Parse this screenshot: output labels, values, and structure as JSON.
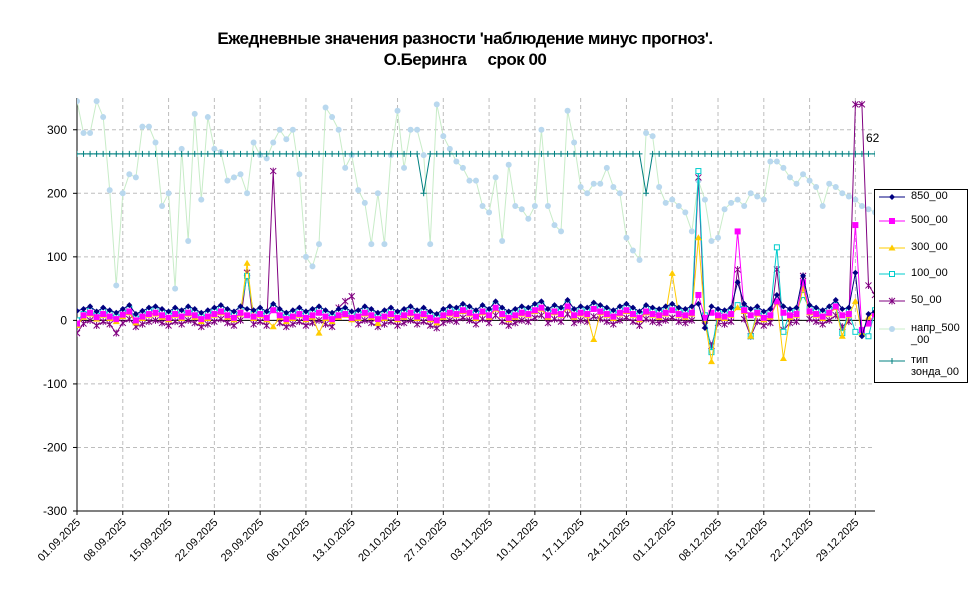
{
  "title_line1": "Ежедневные значения разности 'наблюдение минус прогноз'.",
  "title_line2": "О.Беринга     срок 00",
  "annotation": "62",
  "chart_data": {
    "type": "line",
    "title": "Ежедневные значения разности 'наблюдение минус прогноз'. О.Беринга срок 00",
    "ylim": [
      -300,
      350
    ],
    "yticks": [
      -300,
      -200,
      -100,
      0,
      100,
      200,
      300
    ],
    "grid": true,
    "legend_position": "right",
    "x_tick_labels": [
      "01.09.2025",
      "08.09.2025",
      "15.09.2025",
      "22.09.2025",
      "29.09.2025",
      "06.10.2025",
      "13.10.2025",
      "20.10.2025",
      "27.10.2025",
      "03.11.2025",
      "10.11.2025",
      "17.11.2025",
      "24.11.2025",
      "01.12.2025",
      "08.12.2025",
      "15.12.2025",
      "22.12.2025",
      "29.12.2025"
    ],
    "series": [
      {
        "name": "850_00",
        "color": "#000080",
        "marker": "diamond",
        "values": [
          15,
          18,
          22,
          14,
          20,
          16,
          12,
          18,
          24,
          10,
          15,
          20,
          22,
          18,
          14,
          20,
          16,
          22,
          18,
          12,
          16,
          20,
          24,
          18,
          14,
          22,
          18,
          16,
          20,
          14,
          26,
          18,
          12,
          16,
          20,
          14,
          18,
          22,
          16,
          12,
          18,
          20,
          14,
          16,
          22,
          18,
          12,
          16,
          20,
          14,
          18,
          22,
          16,
          20,
          14,
          10,
          18,
          22,
          20,
          26,
          22,
          16,
          24,
          18,
          30,
          20,
          14,
          18,
          22,
          20,
          26,
          30,
          18,
          24,
          20,
          32,
          18,
          22,
          20,
          28,
          24,
          20,
          16,
          22,
          26,
          20,
          14,
          24,
          20,
          18,
          22,
          26,
          20,
          18,
          22,
          26,
          -12,
          22,
          18,
          16,
          20,
          60,
          26,
          18,
          22,
          14,
          18,
          40,
          22,
          18,
          20,
          70,
          24,
          20,
          16,
          22,
          32,
          18,
          20,
          75,
          -25,
          10,
          14
        ]
      },
      {
        "name": "500_00",
        "color": "#FF00FF",
        "marker": "square",
        "values": [
          -5,
          8,
          12,
          5,
          10,
          6,
          2,
          9,
          14,
          0,
          6,
          10,
          12,
          8,
          4,
          10,
          6,
          12,
          8,
          2,
          6,
          10,
          14,
          8,
          4,
          12,
          8,
          6,
          10,
          4,
          16,
          8,
          2,
          6,
          10,
          4,
          8,
          12,
          6,
          2,
          8,
          10,
          4,
          6,
          12,
          8,
          2,
          6,
          10,
          4,
          8,
          12,
          6,
          10,
          4,
          0,
          8,
          12,
          10,
          16,
          12,
          6,
          14,
          8,
          20,
          10,
          4,
          8,
          12,
          10,
          16,
          20,
          8,
          14,
          10,
          22,
          8,
          12,
          10,
          18,
          14,
          10,
          6,
          12,
          16,
          10,
          4,
          14,
          10,
          8,
          12,
          16,
          10,
          8,
          12,
          40,
          4,
          12,
          8,
          6,
          10,
          140,
          16,
          8,
          12,
          4,
          8,
          30,
          12,
          8,
          10,
          60,
          14,
          10,
          6,
          12,
          22,
          8,
          10,
          150,
          -15,
          -5,
          10
        ]
      },
      {
        "name": "300_00",
        "color": "#FFCC00",
        "marker": "triangle",
        "values": [
          -8,
          5,
          10,
          2,
          8,
          3,
          -2,
          6,
          12,
          -4,
          3,
          8,
          10,
          5,
          1,
          8,
          3,
          10,
          5,
          -2,
          3,
          8,
          12,
          5,
          1,
          10,
          90,
          3,
          8,
          1,
          -10,
          5,
          -2,
          3,
          8,
          1,
          5,
          -20,
          3,
          -2,
          5,
          8,
          1,
          3,
          10,
          5,
          -5,
          3,
          8,
          1,
          5,
          10,
          3,
          8,
          1,
          -4,
          5,
          10,
          8,
          14,
          10,
          3,
          12,
          5,
          18,
          8,
          1,
          5,
          10,
          8,
          14,
          18,
          5,
          12,
          8,
          20,
          5,
          10,
          8,
          -30,
          12,
          8,
          3,
          10,
          14,
          8,
          1,
          12,
          8,
          5,
          10,
          74,
          8,
          5,
          10,
          130,
          1,
          -65,
          5,
          3,
          8,
          20,
          14,
          -25,
          10,
          1,
          5,
          28,
          -60,
          5,
          8,
          50,
          12,
          8,
          3,
          10,
          20,
          -25,
          8,
          30,
          -20,
          5,
          12
        ]
      },
      {
        "name": "100_00",
        "color": "#00CCCC",
        "marker": "open-square",
        "values": [
          0,
          10,
          15,
          8,
          14,
          10,
          5,
          12,
          18,
          3,
          10,
          14,
          16,
          12,
          8,
          14,
          10,
          16,
          12,
          5,
          10,
          14,
          18,
          12,
          8,
          16,
          70,
          10,
          14,
          8,
          20,
          12,
          5,
          10,
          14,
          8,
          12,
          16,
          10,
          5,
          12,
          14,
          8,
          10,
          16,
          12,
          5,
          10,
          14,
          8,
          12,
          16,
          10,
          14,
          8,
          4,
          12,
          16,
          14,
          20,
          16,
          10,
          18,
          12,
          24,
          14,
          8,
          12,
          16,
          14,
          20,
          24,
          12,
          18,
          14,
          26,
          12,
          16,
          14,
          22,
          18,
          14,
          10,
          16,
          20,
          14,
          8,
          18,
          14,
          12,
          16,
          20,
          14,
          12,
          16,
          235,
          8,
          -50,
          12,
          10,
          14,
          24,
          18,
          -25,
          14,
          8,
          12,
          115,
          -18,
          12,
          14,
          40,
          18,
          14,
          10,
          16,
          24,
          -20,
          14,
          -18,
          -20,
          -25,
          16
        ]
      },
      {
        "name": "50_00",
        "color": "#800080",
        "marker": "star",
        "values": [
          -20,
          -5,
          0,
          -8,
          -2,
          -6,
          -20,
          -4,
          2,
          -10,
          -6,
          -2,
          0,
          -4,
          -8,
          -2,
          -6,
          0,
          -4,
          -10,
          -6,
          -2,
          2,
          -4,
          -8,
          0,
          75,
          -6,
          -2,
          -8,
          235,
          -4,
          -10,
          -6,
          -2,
          -8,
          -4,
          0,
          -6,
          -10,
          20,
          30,
          38,
          -6,
          0,
          -4,
          -10,
          -6,
          -2,
          -8,
          -4,
          0,
          -6,
          -2,
          -8,
          -12,
          -4,
          0,
          -2,
          4,
          0,
          -6,
          2,
          -4,
          8,
          -2,
          -8,
          -4,
          0,
          -2,
          4,
          8,
          -4,
          2,
          -2,
          10,
          -4,
          0,
          -2,
          6,
          2,
          -2,
          -6,
          0,
          4,
          -2,
          -8,
          2,
          -2,
          -4,
          0,
          4,
          -2,
          -4,
          0,
          225,
          -8,
          -40,
          -4,
          -6,
          -2,
          80,
          2,
          -25,
          -2,
          -8,
          -4,
          80,
          -15,
          -4,
          -2,
          70,
          2,
          -2,
          -6,
          0,
          8,
          -10,
          -2,
          340,
          340,
          55,
          40
        ]
      },
      {
        "name": "напр_500_00",
        "color": "#B9D8EE",
        "marker": "circle",
        "values": [
          345,
          295,
          295,
          345,
          320,
          205,
          55,
          200,
          230,
          225,
          305,
          305,
          280,
          180,
          200,
          50,
          270,
          125,
          325,
          190,
          320,
          270,
          265,
          220,
          225,
          230,
          200,
          280,
          260,
          255,
          280,
          300,
          285,
          300,
          230,
          100,
          85,
          120,
          335,
          320,
          300,
          240,
          260,
          205,
          185,
          120,
          200,
          120,
          260,
          330,
          240,
          300,
          300,
          260,
          120,
          340,
          290,
          270,
          250,
          240,
          220,
          220,
          180,
          170,
          225,
          125,
          245,
          180,
          175,
          160,
          180,
          300,
          180,
          150,
          140,
          330,
          280,
          210,
          200,
          215,
          215,
          240,
          210,
          200,
          130,
          110,
          95,
          295,
          290,
          210,
          185,
          190,
          180,
          170,
          140,
          220,
          190,
          125,
          130,
          175,
          185,
          190,
          180,
          200,
          195,
          190,
          250,
          250,
          240,
          225,
          215,
          230,
          220,
          210,
          180,
          215,
          210,
          200,
          195,
          190,
          180,
          175,
          170
        ]
      },
      {
        "name": "тип зонда_00",
        "color": "#008080",
        "marker": "plus",
        "values": [
          262,
          262,
          262,
          262,
          262,
          262,
          262,
          262,
          262,
          262,
          262,
          262,
          262,
          262,
          262,
          262,
          262,
          262,
          262,
          262,
          262,
          262,
          262,
          262,
          262,
          262,
          262,
          262,
          262,
          262,
          262,
          262,
          262,
          262,
          262,
          262,
          262,
          262,
          262,
          262,
          262,
          262,
          262,
          262,
          262,
          262,
          262,
          262,
          262,
          262,
          262,
          262,
          262,
          200,
          262,
          262,
          262,
          262,
          262,
          262,
          262,
          262,
          262,
          262,
          262,
          262,
          262,
          262,
          262,
          262,
          262,
          262,
          262,
          262,
          262,
          262,
          262,
          262,
          262,
          262,
          262,
          262,
          262,
          262,
          262,
          262,
          262,
          200,
          262,
          262,
          262,
          262,
          262,
          262,
          262,
          262,
          262,
          262,
          262,
          262,
          262,
          262,
          262,
          262,
          262,
          262,
          262,
          262,
          262,
          262,
          262,
          262,
          262,
          262,
          262,
          262,
          262,
          262,
          262,
          262,
          262,
          262,
          262
        ]
      }
    ]
  },
  "legend": [
    {
      "label": "850_00"
    },
    {
      "label": "500_00"
    },
    {
      "label": "300_00"
    },
    {
      "label": "100_00"
    },
    {
      "label": "50_00"
    },
    {
      "label": "напр_500\n_00"
    },
    {
      "label": "тип\nзонда_00"
    }
  ]
}
